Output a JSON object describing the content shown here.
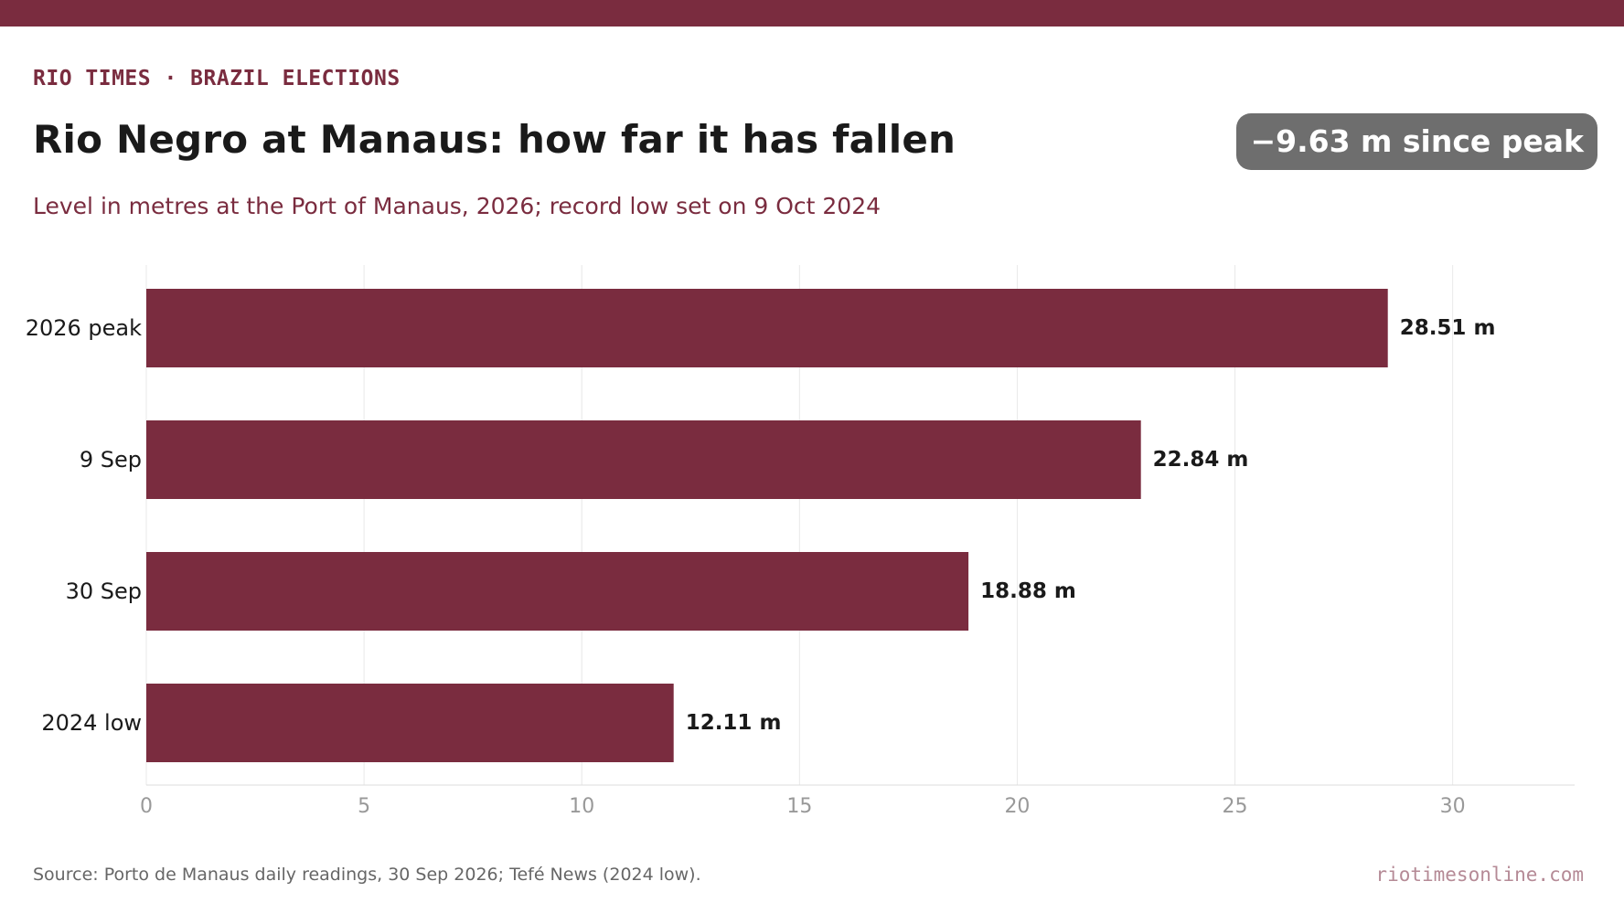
{
  "header": {
    "kicker": "RIO TIMES · BRAZIL ELECTIONS",
    "title": "Rio Negro at Manaus: how far it has fallen",
    "badge": "−9.63 m since peak",
    "subtitle": "Level in metres at the Port of Manaus, 2026; record low set on 9 Oct 2024"
  },
  "footer": {
    "source": "Source: Porto de Manaus daily readings, 30 Sep 2026; Tefé News (2024 low).",
    "site": "riotimesonline.com"
  },
  "colors": {
    "accent": "#7a2c3f",
    "badge": "#6e6e6e",
    "grid": "#e8e8e8",
    "tick": "#999999"
  },
  "chart_data": {
    "type": "bar",
    "orientation": "horizontal",
    "categories": [
      "2026 peak",
      "9 Sep",
      "30 Sep",
      "2024 low"
    ],
    "values": [
      28.51,
      22.84,
      18.88,
      12.11
    ],
    "data_labels": [
      "28.51 m",
      "22.84 m",
      "18.88 m",
      "12.11 m"
    ],
    "xlim": [
      0,
      32.8
    ],
    "xticks": [
      0,
      5,
      10,
      15,
      20,
      25,
      30
    ],
    "grid": true,
    "legend": "none"
  }
}
